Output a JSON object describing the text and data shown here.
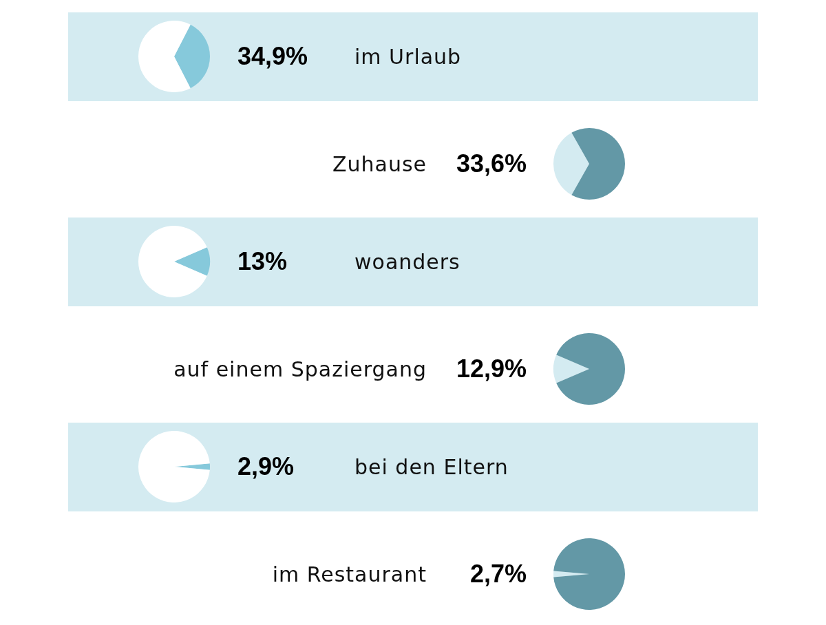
{
  "chart_data": [
    {
      "type": "pie",
      "title": "im Urlaub",
      "categories": [
        null,
        null
      ],
      "values": [
        34.9,
        65.1
      ],
      "value_labels": [
        "34,9%",
        null
      ],
      "colors": [
        "#86c9db",
        "#ffffff"
      ]
    },
    {
      "type": "pie",
      "title": "Zuhause",
      "categories": [
        null,
        null
      ],
      "values": [
        33.6,
        66.4
      ],
      "value_labels": [
        "33,6%",
        null
      ],
      "colors": [
        "#d4ebf1",
        "#6398a6"
      ]
    },
    {
      "type": "pie",
      "title": "woanders",
      "categories": [
        null,
        null
      ],
      "values": [
        13,
        87
      ],
      "value_labels": [
        "13%",
        null
      ],
      "colors": [
        "#86c9db",
        "#ffffff"
      ]
    },
    {
      "type": "pie",
      "title": "auf einem Spaziergang",
      "categories": [
        null,
        null
      ],
      "values": [
        12.9,
        87.1
      ],
      "value_labels": [
        "12,9%",
        null
      ],
      "colors": [
        "#d4ebf1",
        "#6398a6"
      ]
    },
    {
      "type": "pie",
      "title": "bei den Eltern",
      "categories": [
        null,
        null
      ],
      "values": [
        2.9,
        97.1
      ],
      "value_labels": [
        "2,9%",
        null
      ],
      "colors": [
        "#86c9db",
        "#ffffff"
      ]
    },
    {
      "type": "pie",
      "title": "im Restaurant",
      "categories": [
        null,
        null
      ],
      "values": [
        2.7,
        97.3
      ],
      "value_labels": [
        "2,7%",
        null
      ],
      "colors": [
        "#d4ebf1",
        "#6398a6"
      ]
    }
  ]
}
